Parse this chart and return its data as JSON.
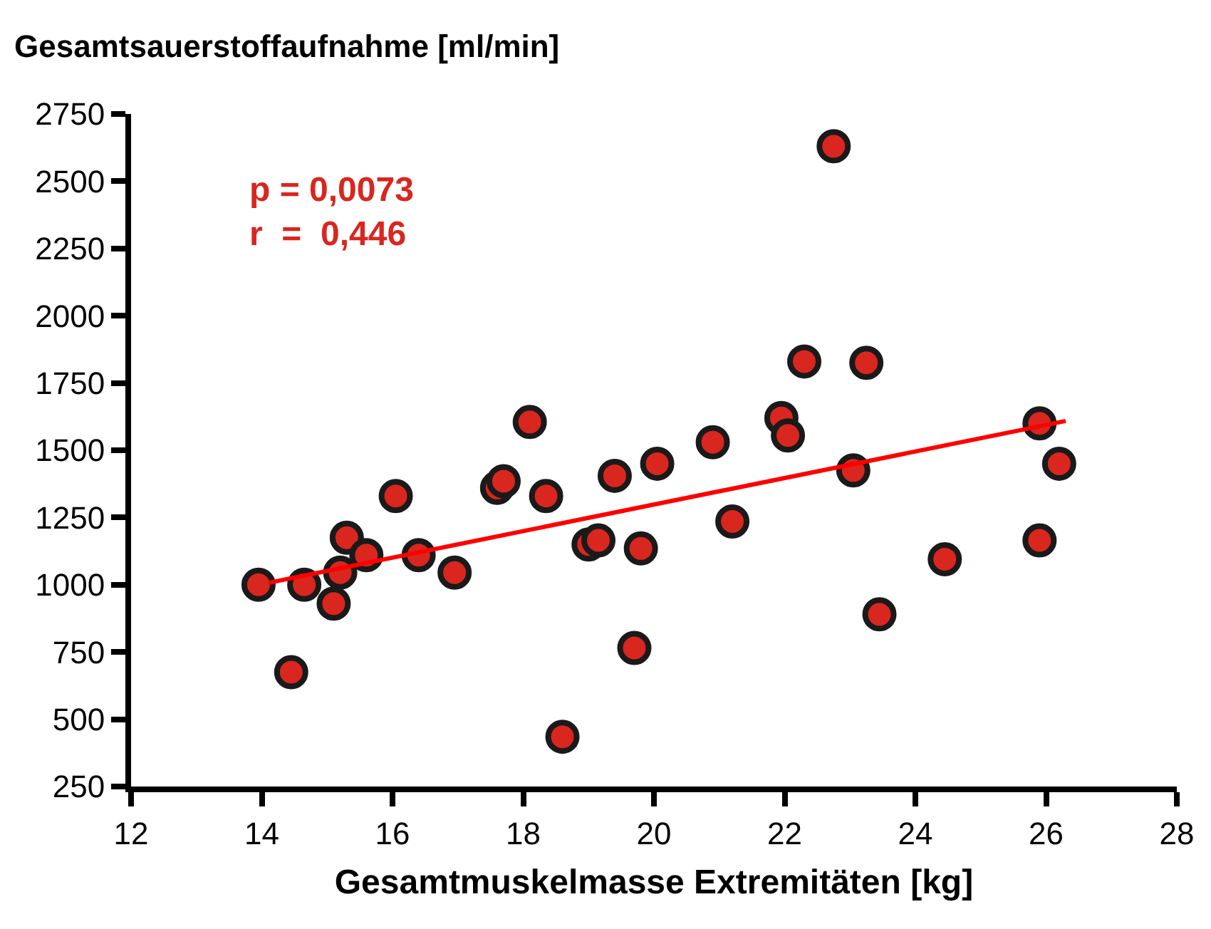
{
  "chart_data": {
    "type": "scatter",
    "ylabel": "Gesamtsauerstoffaufnahme [ml/min]",
    "xlabel": "Gesamtmuskelmasse Extremitäten [kg]",
    "xlim": [
      12,
      28
    ],
    "xticks": [
      12,
      14,
      16,
      18,
      20,
      22,
      24,
      26,
      28
    ],
    "ylim": [
      250,
      2750
    ],
    "yticks": [
      250,
      500,
      750,
      1000,
      1250,
      1500,
      1750,
      2000,
      2250,
      2500,
      2750
    ],
    "series": [
      {
        "marker": "circle",
        "color": "#d9261f",
        "x": [
          13.95,
          14.45,
          14.65,
          15.1,
          15.2,
          15.3,
          15.6,
          16.05,
          16.4,
          16.95,
          17.6,
          17.7,
          18.1,
          18.35,
          18.6,
          19.0,
          19.15,
          19.4,
          19.7,
          19.8,
          20.05,
          20.9,
          21.2,
          21.95,
          22.05,
          22.3,
          22.75,
          23.05,
          23.25,
          23.45,
          24.45,
          25.9,
          25.9,
          26.2
        ],
        "values": [
          1000,
          675,
          1000,
          930,
          1045,
          1175,
          1110,
          1330,
          1110,
          1045,
          1360,
          1385,
          1605,
          1330,
          435,
          1150,
          1165,
          1405,
          765,
          1135,
          1450,
          1530,
          1235,
          1620,
          1555,
          1830,
          2630,
          1425,
          1825,
          890,
          1095,
          1600,
          1165,
          1450
        ]
      },
      {
        "type": "line",
        "color": "#ff0000",
        "line_style": "solid",
        "x": [
          14.1,
          26.3
        ],
        "values": [
          1007,
          1609
        ]
      }
    ],
    "annotations": [
      "p = 0,0073\nr  =  0,446"
    ]
  }
}
